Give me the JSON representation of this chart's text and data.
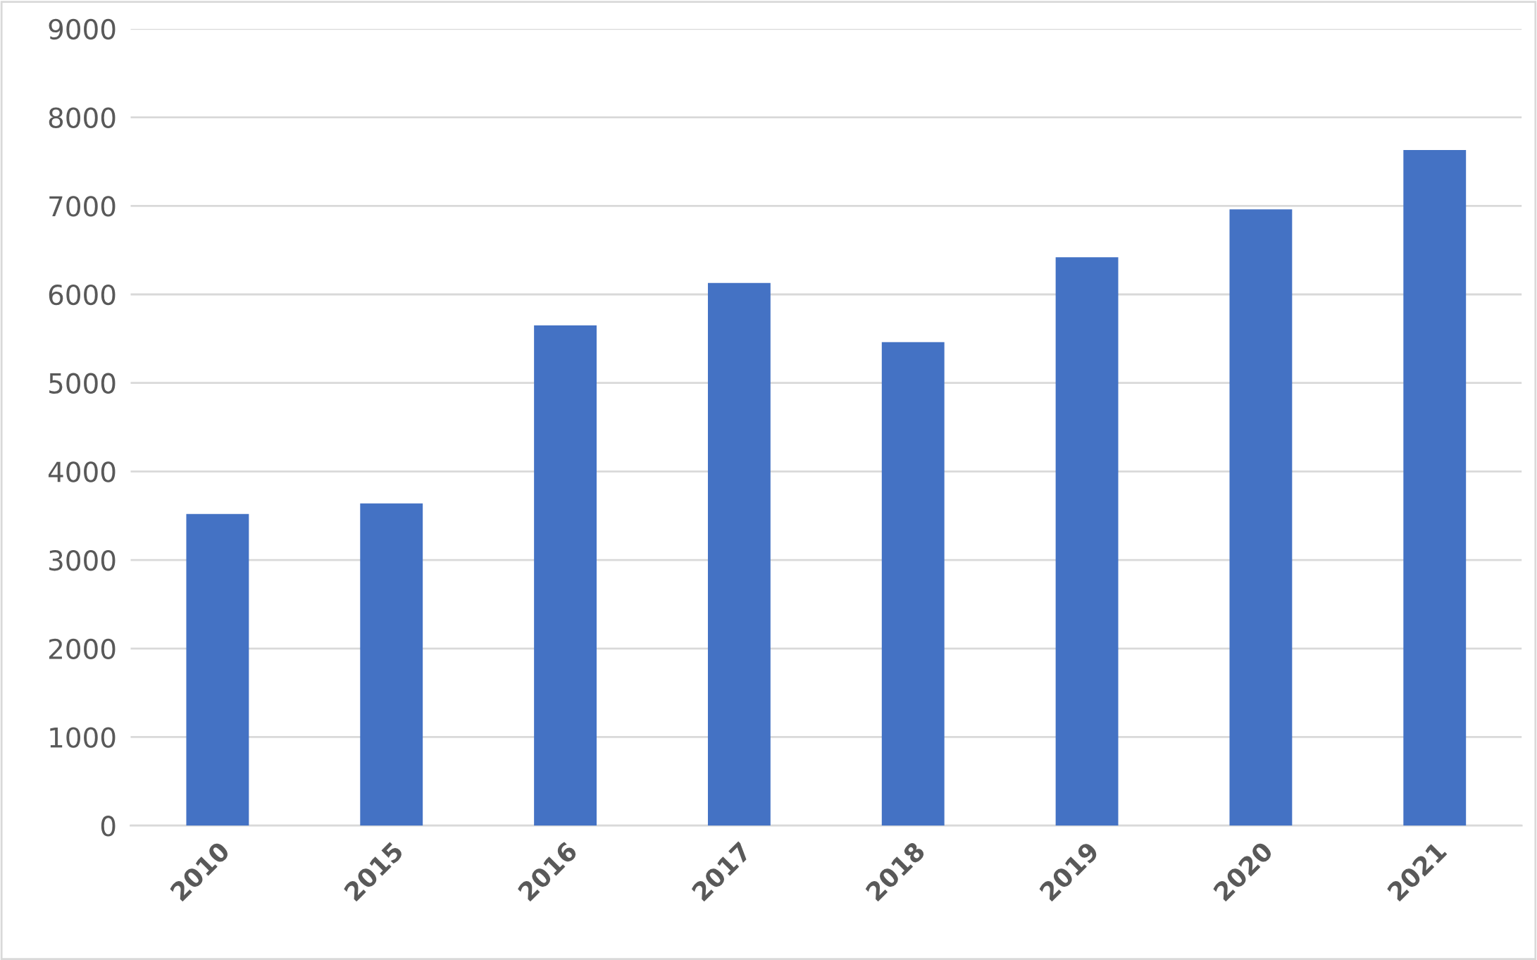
{
  "chart_data": {
    "type": "bar",
    "categories": [
      "2010",
      "2015",
      "2016",
      "2017",
      "2018",
      "2019",
      "2020",
      "2021"
    ],
    "values": [
      3520,
      3640,
      5650,
      6130,
      5460,
      6420,
      6960,
      7630
    ],
    "color": "#4472c4",
    "ylim": [
      0,
      9000
    ],
    "yticks": [
      0,
      1000,
      2000,
      3000,
      4000,
      5000,
      6000,
      7000,
      8000,
      9000
    ],
    "grid": "y",
    "legend": false
  }
}
